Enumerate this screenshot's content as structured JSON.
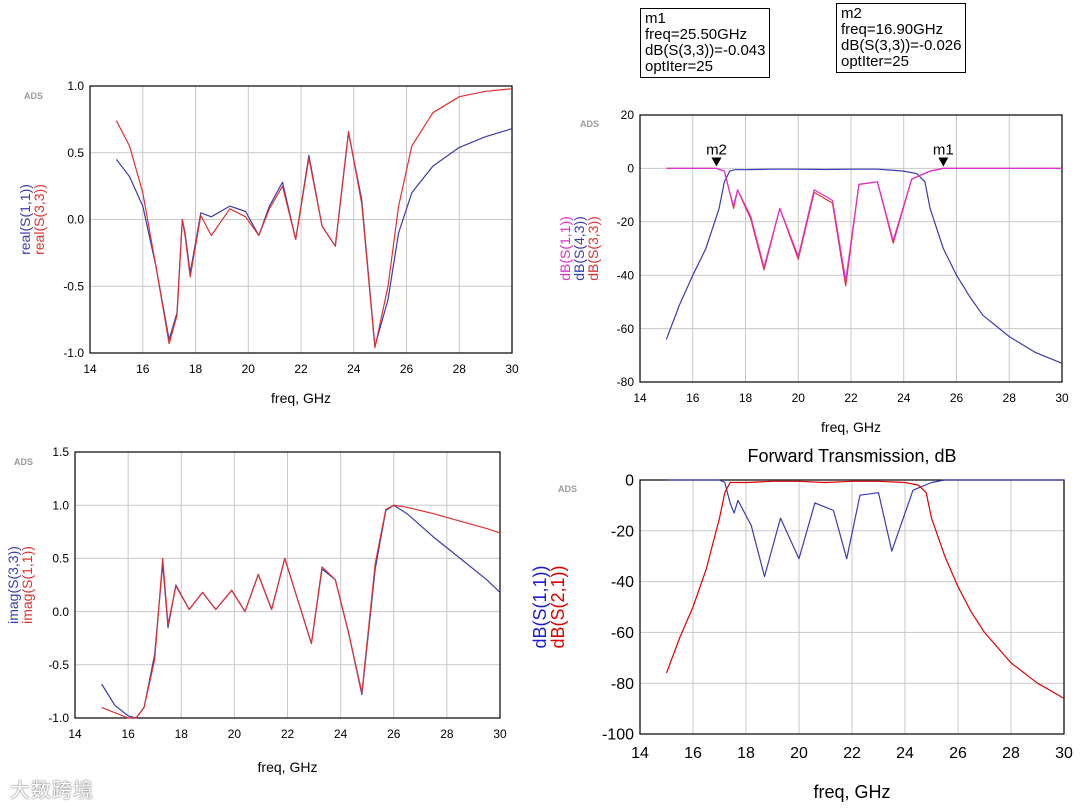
{
  "colors": {
    "blue": "#3b3bb0",
    "red": "#e03131",
    "magenta": "#e030d0",
    "grid": "#c8c8c8",
    "axis": "#000000"
  },
  "markers": [
    {
      "lines": [
        "m1",
        "freq=25.50GHz",
        "dB(S(3,3))=-0.043",
        "optIter=25"
      ]
    },
    {
      "lines": [
        "m2",
        "freq=16.90GHz",
        "dB(S(3,3))=-0.026",
        "optIter=25"
      ]
    }
  ],
  "watermark": "大数跨境",
  "chart_data": [
    {
      "id": "real",
      "type": "line",
      "badge": "ADS",
      "title": "",
      "xlabel": "freq, GHz",
      "ylabels": [
        {
          "text": "real(S(1,1))",
          "color": "#3b3bb0"
        },
        {
          "text": "real(S(3,3))",
          "color": "#e03131"
        }
      ],
      "xlim": [
        14,
        30
      ],
      "ylim": [
        -1.0,
        1.0
      ],
      "xticks": [
        14,
        16,
        18,
        20,
        22,
        24,
        26,
        28,
        30
      ],
      "xticklabels": [
        "14",
        "16",
        "18",
        "20",
        "22",
        "24",
        "26",
        "28",
        "30"
      ],
      "yticks": [
        -1.0,
        -0.5,
        0.0,
        0.5,
        1.0
      ],
      "yticklabels": [
        "-1.0",
        "-0.5",
        "0.0",
        "0.5",
        "1.0"
      ],
      "series": [
        {
          "name": "real(S(1,1))",
          "color": "#3b3bb0",
          "x": [
            15,
            15.5,
            16,
            16.5,
            17,
            17.3,
            17.5,
            17.6,
            17.8,
            18.2,
            18.6,
            19.3,
            19.9,
            20.4,
            20.8,
            21.3,
            21.8,
            22.3,
            22.8,
            23.3,
            23.8,
            24.3,
            24.8,
            25.3,
            25.7,
            26.2,
            27,
            28,
            29,
            30
          ],
          "y": [
            0.45,
            0.32,
            0.1,
            -0.35,
            -0.9,
            -0.7,
            0.0,
            -0.1,
            -0.4,
            0.05,
            0.02,
            0.1,
            0.06,
            -0.12,
            0.1,
            0.28,
            -0.15,
            0.48,
            -0.05,
            -0.2,
            0.65,
            0.15,
            -0.95,
            -0.6,
            -0.1,
            0.2,
            0.4,
            0.54,
            0.62,
            0.68
          ]
        },
        {
          "name": "real(S(3,3))",
          "color": "#e03131",
          "x": [
            15,
            15.5,
            16,
            16.5,
            17,
            17.3,
            17.5,
            17.6,
            17.8,
            18.2,
            18.6,
            19.3,
            19.9,
            20.4,
            20.8,
            21.3,
            21.8,
            22.3,
            22.8,
            23.3,
            23.8,
            24.3,
            24.8,
            25.3,
            25.7,
            26.2,
            27,
            28,
            29,
            30
          ],
          "y": [
            0.74,
            0.55,
            0.2,
            -0.35,
            -0.93,
            -0.72,
            0.0,
            -0.12,
            -0.43,
            0.03,
            -0.12,
            0.08,
            0.02,
            -0.12,
            0.08,
            0.25,
            -0.15,
            0.46,
            -0.05,
            -0.2,
            0.66,
            0.12,
            -0.96,
            -0.5,
            0.1,
            0.55,
            0.8,
            0.92,
            0.96,
            0.98
          ]
        }
      ]
    },
    {
      "id": "s33db",
      "type": "line",
      "badge": "ADS",
      "title": "",
      "xlabel": "freq, GHz",
      "ylabels": [
        {
          "text": "dB(S(1,1))",
          "color": "#e030d0"
        },
        {
          "text": "dB(S(4,3))",
          "color": "#3b3bb0"
        },
        {
          "text": "dB(S(3,3))",
          "color": "#e03131"
        }
      ],
      "xlim": [
        14,
        30
      ],
      "ylim": [
        -80,
        20
      ],
      "xticks": [
        14,
        16,
        18,
        20,
        22,
        24,
        26,
        28,
        30
      ],
      "xticklabels": [
        "14",
        "16",
        "18",
        "20",
        "22",
        "24",
        "26",
        "28",
        "30"
      ],
      "yticks": [
        -80,
        -60,
        -40,
        -20,
        0,
        20
      ],
      "yticklabels": [
        "-80",
        "-60",
        "-40",
        "-20",
        "0",
        "20"
      ],
      "series": [
        {
          "name": "dB(S(4,3))",
          "color": "#3b3bb0",
          "x": [
            15,
            15.5,
            16,
            16.5,
            17,
            17.2,
            17.4,
            17.6,
            18,
            19,
            20,
            21,
            22,
            23,
            24,
            24.5,
            24.8,
            25,
            25.5,
            26,
            26.5,
            27,
            28,
            29,
            30
          ],
          "y": [
            -64,
            -51,
            -40,
            -30,
            -15,
            -5,
            -1,
            -0.5,
            -0.5,
            -0.3,
            -0.3,
            -0.4,
            -0.3,
            -0.3,
            -1,
            -2,
            -5,
            -15,
            -30,
            -40,
            -48,
            -55,
            -63,
            -69,
            -73
          ]
        },
        {
          "name": "dB(S(3,3))",
          "color": "#e03131",
          "x": [
            15,
            16.9,
            17.2,
            17.4,
            17.55,
            17.7,
            18.2,
            18.7,
            19.3,
            20,
            20.6,
            21.3,
            21.8,
            22.3,
            23,
            23.6,
            24.3,
            25,
            25.5,
            30
          ],
          "y": [
            0,
            0,
            -1,
            -9,
            -15,
            -8,
            -19,
            -38,
            -15,
            -34,
            -9,
            -13,
            -44,
            -6,
            -5,
            -28,
            -4,
            -1,
            0,
            0
          ]
        },
        {
          "name": "dB(S(1,1))",
          "color": "#e030d0",
          "x": [
            15,
            16.9,
            17.2,
            17.4,
            17.55,
            17.7,
            18.2,
            18.7,
            19.3,
            20,
            20.6,
            21.3,
            21.8,
            22.3,
            23,
            23.6,
            24.3,
            25,
            25.5,
            30
          ],
          "y": [
            0,
            0,
            -1,
            -9,
            -14,
            -8,
            -18,
            -37,
            -15,
            -33,
            -8,
            -12,
            -42,
            -6,
            -5,
            -27,
            -4,
            -1,
            0,
            0
          ]
        }
      ],
      "markers": [
        {
          "label": "m2",
          "x": 16.9,
          "y": -0.026
        },
        {
          "label": "m1",
          "x": 25.5,
          "y": -0.043
        }
      ]
    },
    {
      "id": "imag",
      "type": "line",
      "badge": "ADS",
      "title": "",
      "xlabel": "freq, GHz",
      "ylabels": [
        {
          "text": "imag(S(3,3))",
          "color": "#3b3bb0"
        },
        {
          "text": "imag(S(1,1))",
          "color": "#e03131"
        }
      ],
      "xlim": [
        14,
        30
      ],
      "ylim": [
        -1.0,
        1.5
      ],
      "xticks": [
        14,
        16,
        18,
        20,
        22,
        24,
        26,
        28,
        30
      ],
      "xticklabels": [
        "14",
        "16",
        "18",
        "20",
        "22",
        "24",
        "26",
        "28",
        "30"
      ],
      "yticks": [
        -1.0,
        -0.5,
        0.0,
        0.5,
        1.0,
        1.5
      ],
      "yticklabels": [
        "-1.0",
        "-0.5",
        "0.0",
        "0.5",
        "1.0",
        "1.5"
      ],
      "series": [
        {
          "name": "imag(S(3,3))",
          "color": "#3b3bb0",
          "x": [
            15,
            15.5,
            16,
            16.3,
            16.6,
            17,
            17.3,
            17.5,
            17.8,
            18.3,
            18.8,
            19.3,
            19.9,
            20.4,
            20.9,
            21.4,
            21.9,
            22.4,
            22.9,
            23.3,
            23.8,
            24.3,
            24.8,
            25.3,
            25.7,
            26,
            26.5,
            27.5,
            28.5,
            29.5,
            30
          ],
          "y": [
            -0.68,
            -0.88,
            -0.98,
            -1.0,
            -0.9,
            -0.4,
            0.45,
            -0.15,
            0.25,
            0.02,
            0.18,
            0.02,
            0.2,
            0.0,
            0.35,
            0.02,
            0.5,
            0.1,
            -0.3,
            0.4,
            0.3,
            -0.2,
            -0.78,
            0.4,
            0.95,
            1.0,
            0.92,
            0.7,
            0.5,
            0.3,
            0.18
          ]
        },
        {
          "name": "imag(S(1,1))",
          "color": "#e03131",
          "x": [
            15,
            15.5,
            16,
            16.3,
            16.6,
            17,
            17.3,
            17.5,
            17.8,
            18.3,
            18.8,
            19.3,
            19.9,
            20.4,
            20.9,
            21.4,
            21.9,
            22.4,
            22.9,
            23.3,
            23.8,
            24.3,
            24.8,
            25.3,
            25.7,
            26,
            26.5,
            27.5,
            28.5,
            29.5,
            30
          ],
          "y": [
            -0.9,
            -0.95,
            -1.0,
            -1.0,
            -0.9,
            -0.45,
            0.5,
            -0.12,
            0.24,
            0.02,
            0.18,
            0.02,
            0.2,
            0.0,
            0.35,
            0.02,
            0.5,
            0.1,
            -0.3,
            0.42,
            0.3,
            -0.2,
            -0.76,
            0.45,
            0.96,
            1.0,
            0.98,
            0.92,
            0.85,
            0.78,
            0.74
          ]
        }
      ]
    },
    {
      "id": "fwd",
      "type": "line",
      "badge": "ADS",
      "title": "Forward Transmission, dB",
      "xlabel": "freq, GHz",
      "ylabels": [
        {
          "text": "dB(S(1,1))",
          "color": "#1c1cd0"
        },
        {
          "text": "dB(S(2,1))",
          "color": "#e00000"
        }
      ],
      "xlim": [
        14,
        30
      ],
      "ylim": [
        -100,
        0
      ],
      "xticks": [
        14,
        16,
        18,
        20,
        22,
        24,
        26,
        28,
        30
      ],
      "xticklabels": [
        "14",
        "16",
        "18",
        "20",
        "22",
        "24",
        "26",
        "28",
        "30"
      ],
      "yticks": [
        -100,
        -80,
        -60,
        -40,
        -20,
        0
      ],
      "yticklabels": [
        "-100",
        "-80",
        "-60",
        "-40",
        "-20",
        "0"
      ],
      "series": [
        {
          "name": "dB(S(1,1))",
          "color": "#3b3bb0",
          "x": [
            15,
            17,
            17.2,
            17.4,
            17.55,
            17.7,
            18.2,
            18.7,
            19.3,
            20,
            20.6,
            21.3,
            21.8,
            22.3,
            23,
            23.5,
            24.3,
            25,
            25.5,
            30
          ],
          "y": [
            0,
            0,
            -1,
            -9,
            -13,
            -8,
            -18,
            -38,
            -15,
            -31,
            -9,
            -12,
            -31,
            -6,
            -5,
            -28,
            -4,
            -1,
            0,
            0
          ]
        },
        {
          "name": "dB(S(2,1))",
          "color": "#e00000",
          "x": [
            15,
            15.5,
            16,
            16.5,
            17,
            17.2,
            17.4,
            17.6,
            18,
            19,
            20,
            21,
            22,
            23,
            24,
            24.5,
            24.8,
            25,
            25.5,
            26,
            26.5,
            27,
            28,
            29,
            30
          ],
          "y": [
            -76,
            -62,
            -50,
            -35,
            -15,
            -5,
            -1,
            -1,
            -1,
            -0.5,
            -0.5,
            -1,
            -0.5,
            -0.5,
            -1,
            -2,
            -5,
            -15,
            -30,
            -42,
            -52,
            -60,
            -72,
            -80,
            -86
          ]
        }
      ]
    }
  ]
}
